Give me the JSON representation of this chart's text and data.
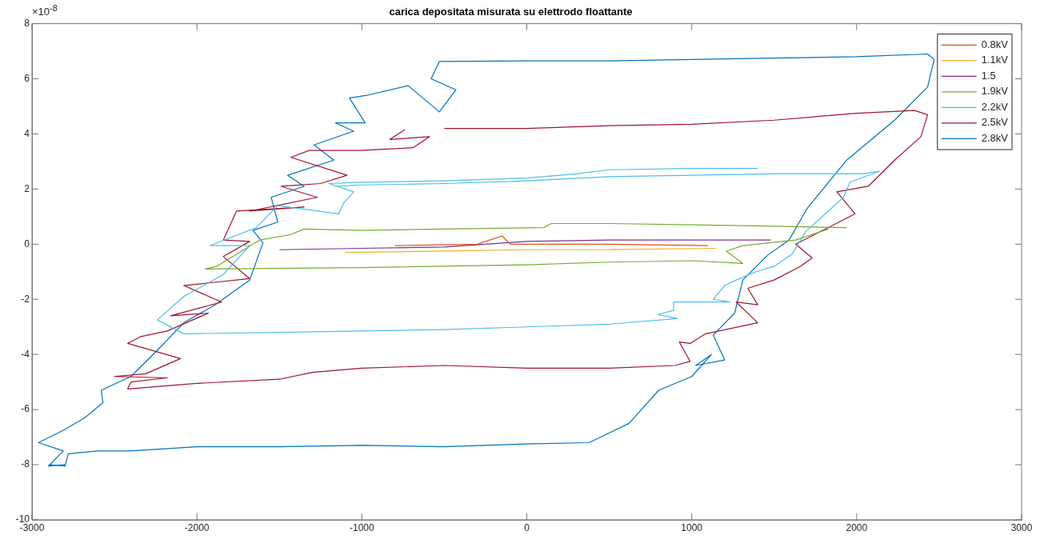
{
  "chart_data": {
    "type": "line",
    "title": "carica depositata misurata su elettrodo floattante",
    "annotations": [
      "×10$^{-8}$"
    ],
    "xlim": [
      -3000,
      3000
    ],
    "xticks": [
      -3000,
      -2000,
      -1000,
      0,
      1000,
      2000,
      3000
    ],
    "ylim": [
      -10,
      8
    ],
    "yticks": [
      -10,
      -8,
      -6,
      -4,
      -2,
      0,
      2,
      4,
      6,
      8
    ],
    "grid": false,
    "legend": "top right",
    "marker": "none",
    "line_style": "solid",
    "series": [
      {
        "name": "0.8kV",
        "color": "#d95319",
        "x": [
          -800,
          -300,
          -150,
          -100,
          0,
          500,
          1100
        ],
        "values": [
          -0.05,
          0,
          0.3,
          0,
          0,
          0,
          -0.05
        ]
      },
      {
        "name": "1.1kV",
        "color": "#edb120",
        "x": [
          -1100,
          -500,
          0,
          500,
          1150
        ],
        "values": [
          -0.3,
          -0.25,
          -0.2,
          -0.2,
          -0.15
        ]
      },
      {
        "name": "1.5",
        "color": "#7e2f8e",
        "x": [
          -1500,
          -1000,
          -500,
          0,
          500,
          1000,
          1480
        ],
        "values": [
          -0.2,
          -0.15,
          -0.1,
          0.1,
          0.15,
          0.15,
          0.15
        ]
      },
      {
        "name": "1.9kV",
        "color": "#77ac30",
        "x": [
          1940,
          1500,
          1000,
          500,
          150,
          100,
          -500,
          -1000,
          -1350,
          -1430,
          -1620,
          -1880,
          -1950,
          -1000,
          0,
          500,
          1000,
          1310,
          1210,
          1310,
          1630,
          1830
        ],
        "values": [
          0.6,
          0.65,
          0.7,
          0.75,
          0.75,
          0.6,
          0.55,
          0.5,
          0.55,
          0.35,
          0.15,
          -0.8,
          -0.9,
          -0.85,
          -0.75,
          -0.65,
          -0.6,
          -0.7,
          -0.25,
          -0.05,
          0.15,
          0.55
        ]
      },
      {
        "name": "2.2kV",
        "color": "#4dbeee",
        "x": [
          1400,
          1000,
          500,
          300,
          0,
          -500,
          -1000,
          -1200,
          -1050,
          -1110,
          -1140,
          -1510,
          -1640,
          -1920,
          -1680,
          -1840,
          -2080,
          -2240,
          -2080,
          -1500,
          -1000,
          -500,
          0,
          500,
          912,
          795,
          890,
          890,
          1120,
          1230,
          1130,
          1200,
          1270,
          1390,
          1500,
          1610,
          1690,
          1920,
          1960,
          2140,
          2040,
          1500,
          1000,
          500,
          0,
          -500,
          -1000,
          -1150
        ],
        "values": [
          2.75,
          2.75,
          2.7,
          2.55,
          2.4,
          2.3,
          2.25,
          2.2,
          1.9,
          1.5,
          1.1,
          1.4,
          0.6,
          -0.05,
          -0.05,
          -1.1,
          -1.9,
          -2.75,
          -3.25,
          -3.2,
          -3.15,
          -3.1,
          -3,
          -2.9,
          -2.7,
          -2.55,
          -2.4,
          -2.1,
          -2.1,
          -2.1,
          -2,
          -1.5,
          -1.3,
          -1,
          -0.8,
          -0.35,
          0.45,
          1.7,
          2.25,
          2.65,
          2.55,
          2.55,
          2.5,
          2.45,
          2.3,
          2.2,
          2.15,
          2.1
        ]
      },
      {
        "name": "2.5kV",
        "color": "#a2142f",
        "x": [
          -740,
          -830,
          -590,
          -690,
          -1010,
          -1320,
          -1430,
          -1090,
          -1250,
          -1490,
          -1270,
          -1680,
          -1350,
          -1760,
          -1840,
          -1680,
          -1840,
          -1680,
          -2080,
          -1850,
          -2160,
          -1930,
          -2180,
          -2340,
          -2420,
          -2100,
          -2310,
          -2500,
          -2180,
          -2400,
          -2420,
          -2000,
          -1500,
          -1300,
          -1000,
          -500,
          0,
          500,
          900,
          990,
          925,
          990,
          1085,
          1165,
          1400,
          1270,
          1400,
          1340,
          1500,
          1660,
          1730,
          1630,
          1990,
          1880,
          2070,
          2230,
          2390,
          2430,
          2350,
          2000,
          1500,
          1000,
          500,
          0,
          -500
        ],
        "values": [
          4.15,
          3.8,
          3.9,
          3.5,
          3.4,
          3.4,
          3.15,
          2.5,
          2.2,
          2.1,
          1.7,
          1.2,
          1.35,
          1.2,
          0.15,
          0.1,
          -0.45,
          -1.25,
          -1.5,
          -2.1,
          -2.6,
          -2.5,
          -3.15,
          -3.35,
          -3.6,
          -4.15,
          -4.7,
          -4.8,
          -4.85,
          -5,
          -5.25,
          -5.05,
          -4.9,
          -4.65,
          -4.5,
          -4.4,
          -4.5,
          -4.5,
          -4.4,
          -4.25,
          -3.55,
          -3.6,
          -3.25,
          -3.15,
          -2.85,
          -2.1,
          -2.2,
          -1.6,
          -1.3,
          -0.8,
          -0.5,
          0,
          1.1,
          1.9,
          2.1,
          3.05,
          3.9,
          4.7,
          4.85,
          4.75,
          4.5,
          4.35,
          4.3,
          4.2,
          4.2
        ]
      },
      {
        "name": "2.8kV",
        "color": "#0072bd",
        "x": [
          -2900,
          -2800,
          -2780,
          -2600,
          -2400,
          -2000,
          -1500,
          -1000,
          -500,
          0,
          378,
          620,
          800,
          1000,
          1120,
          1024,
          1200,
          1130,
          1260,
          1310,
          1460,
          1590,
          1700,
          1940,
          2230,
          2430,
          2470,
          2430,
          2000,
          1500,
          1000,
          500,
          0,
          -530,
          -580,
          -430,
          -530,
          -720,
          -970,
          -1075,
          -980,
          -1160,
          -1050,
          -1290,
          -1170,
          -1450,
          -1350,
          -1550,
          -1510,
          -1660,
          -1600,
          -1680,
          -1890,
          -2080,
          -2240,
          -2400,
          -2580,
          -2570,
          -2680,
          -2810,
          -2960,
          -2810,
          -2900,
          -2800
        ],
        "values": [
          -8,
          -8.05,
          -7.6,
          -7.5,
          -7.5,
          -7.35,
          -7.35,
          -7.3,
          -7.35,
          -7.25,
          -7.2,
          -6.5,
          -5.3,
          -4.8,
          -4,
          -4.4,
          -4.2,
          -3.3,
          -2.5,
          -1.3,
          -0.4,
          0.15,
          1.3,
          3.05,
          4.5,
          5.7,
          6.7,
          6.9,
          6.8,
          6.75,
          6.7,
          6.65,
          6.65,
          6.63,
          6,
          5.6,
          4.8,
          5.75,
          5.4,
          5.3,
          4.4,
          4.4,
          4.1,
          3.6,
          3.05,
          2.5,
          2.1,
          1.7,
          0.8,
          0.5,
          0.05,
          -1.3,
          -2.2,
          -2.85,
          -3.85,
          -4.8,
          -5.3,
          -5.75,
          -6.3,
          -6.75,
          -7.2,
          -7.5,
          -8.05,
          -8
        ]
      }
    ]
  }
}
